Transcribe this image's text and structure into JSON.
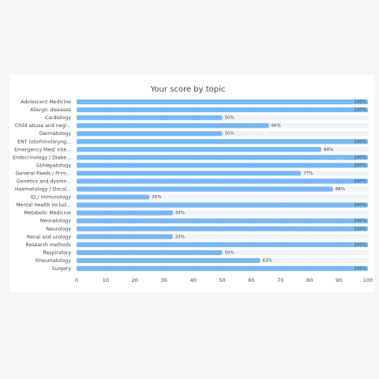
{
  "chart_data": {
    "type": "hbar",
    "title": "Your score by topic",
    "categories": [
      "Adolescent Medicine",
      "Allergic diseases",
      "Cardiology",
      "Child abuse and negl...",
      "Dermatology",
      "ENT (otorhinolaryng...",
      "Emergency Med/ Inte...",
      "Endocrinology / Diabe...",
      "GI/Hepatology",
      "General Paeds / Prim...",
      "Genetics and dysmo...",
      "Haematology / Oncol...",
      "ID / Immunology",
      "Mental Health includ...",
      "Metabolic Medicine",
      "Neonatology",
      "Neurology",
      "Renal and urology",
      "Research methods",
      "Respiratory",
      "Rheumatology",
      "Surgery"
    ],
    "values": [
      100,
      100,
      50,
      66,
      50,
      100,
      84,
      100,
      100,
      77,
      100,
      88,
      25,
      100,
      33,
      100,
      100,
      33,
      100,
      50,
      63,
      100
    ],
    "value_labels": [
      "100%",
      "100%",
      "50%",
      "66%",
      "50%",
      "100%",
      "84%",
      "100%",
      "100%",
      "77%",
      "100%",
      "88%",
      "25%",
      "100%",
      "33%",
      "100%",
      "100%",
      "33%",
      "100%",
      "50%",
      "63%",
      "100%"
    ],
    "color": "#7ab8f5",
    "xlim": [
      0,
      100
    ],
    "xticks": [
      0,
      10,
      20,
      30,
      40,
      50,
      60,
      70,
      80,
      90,
      100
    ]
  }
}
